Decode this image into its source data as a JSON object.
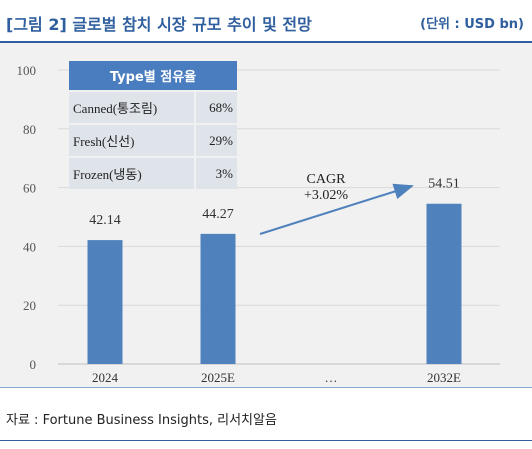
{
  "header": {
    "title": "[그림 2] 글로벌 참치 시장 규모 추이 및 전망",
    "unit": "(단위 : USD bn)"
  },
  "chart_data": {
    "type": "bar",
    "categories": [
      "2024",
      "2025E",
      "…",
      "2032E"
    ],
    "values": [
      42.14,
      44.27,
      null,
      54.51
    ],
    "value_labels": [
      "42.14",
      "44.27",
      "",
      "54.51"
    ],
    "ylim": [
      0,
      100
    ],
    "yticks": [
      0,
      20,
      40,
      60,
      80,
      100
    ],
    "grid": true,
    "bar_color": "#4f81bd",
    "annotation": {
      "line1": "CAGR",
      "line2": "+3.02%",
      "from_category": "2025E",
      "to_category": "2032E"
    }
  },
  "share_table": {
    "header": "Type별 점유율",
    "rows": [
      {
        "label": "Canned(통조림)",
        "value": "68%"
      },
      {
        "label": "Fresh(신선)",
        "value": "29%"
      },
      {
        "label": "Frozen(냉동)",
        "value": "3%"
      }
    ]
  },
  "footer": {
    "source": "자료 : Fortune Business Insights, 리서치알음"
  }
}
